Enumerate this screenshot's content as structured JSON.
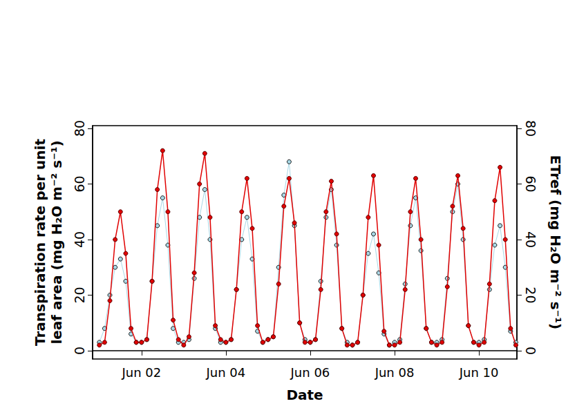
{
  "chart_data": {
    "type": "line",
    "x_label": "Date",
    "y_label": "Transpiration rate per unit leaf area (mg H₂O m⁻² s⁻¹)",
    "y2_label": "ETref (mg H₂O m⁻² s⁻¹)",
    "x": [
      1,
      1.125,
      1.25,
      1.375,
      1.5,
      1.625,
      1.75,
      1.875,
      2,
      2.125,
      2.25,
      2.375,
      2.5,
      2.625,
      2.75,
      2.875,
      3,
      3.125,
      3.25,
      3.375,
      3.5,
      3.625,
      3.75,
      3.875,
      4,
      4.125,
      4.25,
      4.375,
      4.5,
      4.625,
      4.75,
      4.875,
      5,
      5.125,
      5.25,
      5.375,
      5.5,
      5.625,
      5.75,
      5.875,
      6,
      6.125,
      6.25,
      6.375,
      6.5,
      6.625,
      6.75,
      6.875,
      7,
      7.125,
      7.25,
      7.375,
      7.5,
      7.625,
      7.75,
      7.875,
      8,
      8.125,
      8.25,
      8.375,
      8.5,
      8.625,
      8.75,
      8.875,
      9,
      9.125,
      9.25,
      9.375,
      9.5,
      9.625,
      9.75,
      9.875,
      10,
      10.125,
      10.25,
      10.375,
      10.5,
      10.625,
      10.75,
      10.875
    ],
    "series": [
      {
        "name": "Transpiration rate per unit leaf area (mg H₂O m⁻² s⁻¹)",
        "color": "#a8d8e6",
        "marker": "circle",
        "line_style": "solid",
        "values": [
          3,
          8,
          20,
          30,
          33,
          25,
          6,
          3,
          3,
          4,
          25,
          45,
          55,
          38,
          8,
          3,
          3,
          4,
          26,
          48,
          58,
          40,
          8,
          3,
          3,
          4,
          22,
          40,
          48,
          33,
          7,
          3,
          4,
          5,
          30,
          56,
          68,
          45,
          10,
          4,
          3,
          4,
          25,
          48,
          58,
          38,
          8,
          3,
          2,
          3,
          20,
          35,
          42,
          28,
          6,
          2,
          3,
          4,
          24,
          45,
          55,
          36,
          8,
          3,
          3,
          4,
          26,
          50,
          60,
          40,
          9,
          3,
          3,
          4,
          22,
          38,
          45,
          30,
          7,
          3
        ]
      },
      {
        "name": "ETref (mg H₂O m⁻² s⁻¹)",
        "color": "#e00000",
        "marker": "circle",
        "line_style": "solid",
        "axis": "y2",
        "values": [
          2,
          3,
          18,
          40,
          50,
          35,
          8,
          3,
          3,
          4,
          25,
          58,
          72,
          50,
          11,
          4,
          2,
          5,
          28,
          60,
          71,
          48,
          9,
          4,
          3,
          4,
          22,
          50,
          62,
          44,
          9,
          3,
          4,
          5,
          24,
          52,
          62,
          46,
          10,
          3,
          3,
          4,
          22,
          50,
          61,
          42,
          8,
          2,
          2,
          3,
          20,
          48,
          63,
          38,
          7,
          2,
          2,
          3,
          22,
          50,
          62,
          40,
          8,
          3,
          2,
          3,
          23,
          52,
          63,
          44,
          9,
          3,
          2,
          3,
          24,
          54,
          66,
          40,
          8,
          2
        ]
      }
    ],
    "xlim": [
      0.84,
      10.9
    ],
    "xticks": [
      {
        "value": 2,
        "label": "Jun 02"
      },
      {
        "value": 4,
        "label": "Jun 04"
      },
      {
        "value": 6,
        "label": "Jun 06"
      },
      {
        "value": 8,
        "label": "Jun 08"
      },
      {
        "value": 10,
        "label": "Jun 10"
      }
    ],
    "ylim": [
      -3,
      81
    ],
    "yticks": [
      0,
      20,
      40,
      60,
      80
    ],
    "y2lim": [
      -3,
      81
    ],
    "y2ticks": [
      0,
      20,
      40,
      60,
      80
    ],
    "grid": false
  }
}
